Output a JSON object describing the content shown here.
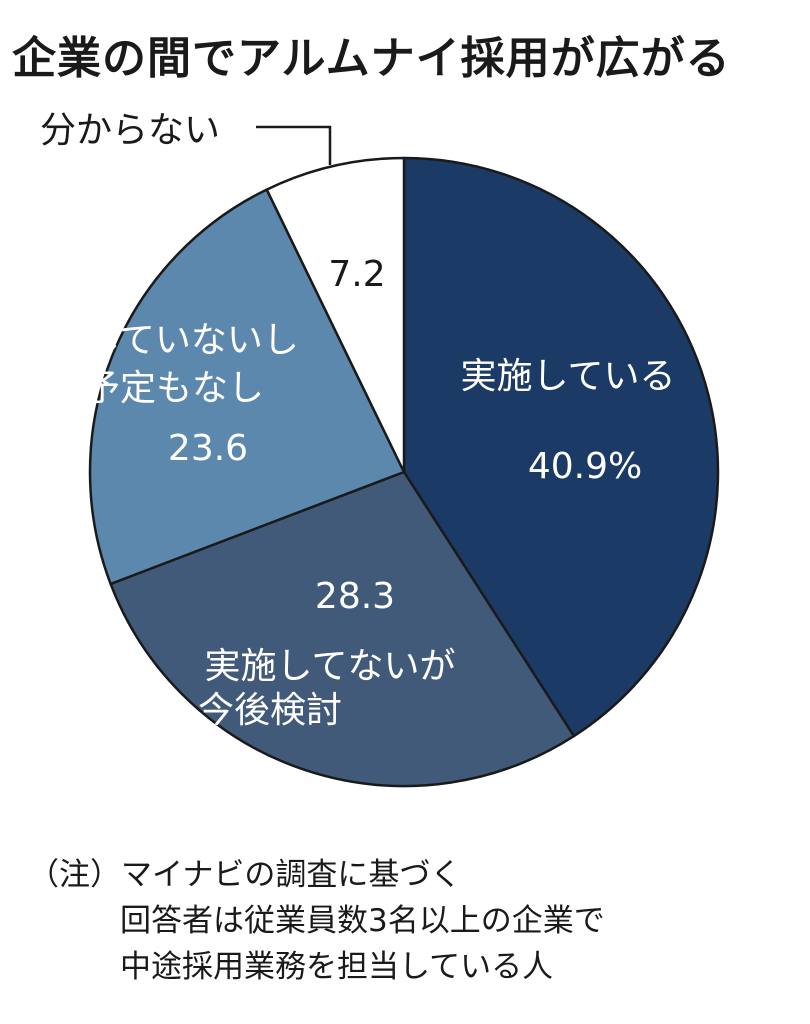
{
  "chart_data": {
    "type": "pie",
    "title": "企業の間でアルムナイ採用が広がる",
    "start_angle_deg": 0,
    "direction": "clockwise",
    "slices": [
      {
        "label_lines": [
          "実施している"
        ],
        "value": 40.9,
        "value_label": "40.9%",
        "color": "#1b3a66",
        "label_color": "#ffffff"
      },
      {
        "label_lines": [
          "実施してないが",
          "今後検討"
        ],
        "value": 28.3,
        "value_label": "28.3",
        "color": "#425a7a",
        "label_color": "#ffffff"
      },
      {
        "label_lines": [
          "実施していないし",
          "検討予定もなし"
        ],
        "value": 23.6,
        "value_label": "23.6",
        "color": "#5d88ad",
        "label_color": "#ffffff"
      },
      {
        "label_lines": [
          "分からない"
        ],
        "value": 7.2,
        "value_label": "7.2",
        "color": "#ffffff",
        "label_color": "#1a1a1a"
      }
    ]
  },
  "note": {
    "line1": "（注）マイナビの調査に基づく",
    "line2": "回答者は従業員数3名以上の企業で",
    "line3": "中途採用業務を担当している人"
  }
}
